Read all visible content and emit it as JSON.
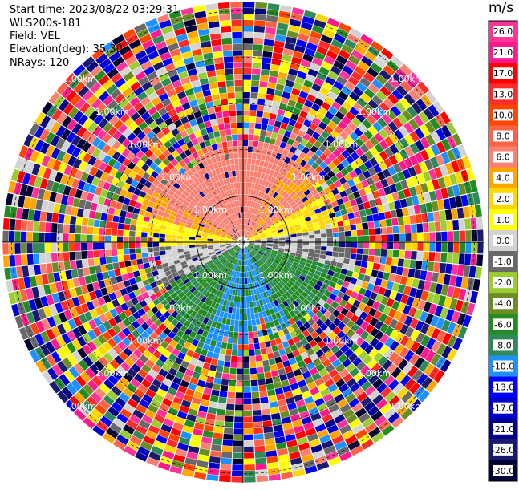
{
  "header": {
    "start_time": "Start time: 2023/08/22 03:29:31",
    "instrument": "WLS200s-181",
    "field": "Field: VEL",
    "elevation": "Elevation(deg): 35.30",
    "nrays": "NRays: 120"
  },
  "chart_data": {
    "type": "heatmap",
    "projection": "polar-ppi",
    "field": "VEL",
    "rays": 120,
    "range_rings_km": [
      1.0,
      2.0,
      3.0,
      4.0,
      5.0
    ],
    "ring_label": "1.00km",
    "ring_labels": [
      "1.00km",
      "2.00km",
      "3.00km",
      "4.00km",
      "5.00km"
    ],
    "max_range_km": 5.2,
    "colorbar": {
      "unit": "m/s",
      "ticks": [
        "26.0",
        "21.0",
        "17.0",
        "13.0",
        "10.0",
        "8.0",
        "6.0",
        "4.0",
        "2.0",
        "1.0",
        "0.0",
        "-1.0",
        "-2.0",
        "-4.0",
        "-6.0",
        "-8.0",
        "-10.0",
        "-13.0",
        "-17.0",
        "-21.0",
        "-26.0",
        "-30.0"
      ],
      "colors": [
        "#ff3399",
        "#ff1a8c",
        "#ff0000",
        "#ff2a2a",
        "#ff4500",
        "#ff6347",
        "#fa8072",
        "#ffa500",
        "#ffd700",
        "#ffff00",
        "#d3d3d3",
        "#696969",
        "#9acd32",
        "#6b8e23",
        "#228b22",
        "#2e8b57",
        "#1e90ff",
        "#0000ff",
        "#0000cd",
        "#00008b",
        "#191970",
        "#000033"
      ]
    },
    "grid": true
  }
}
